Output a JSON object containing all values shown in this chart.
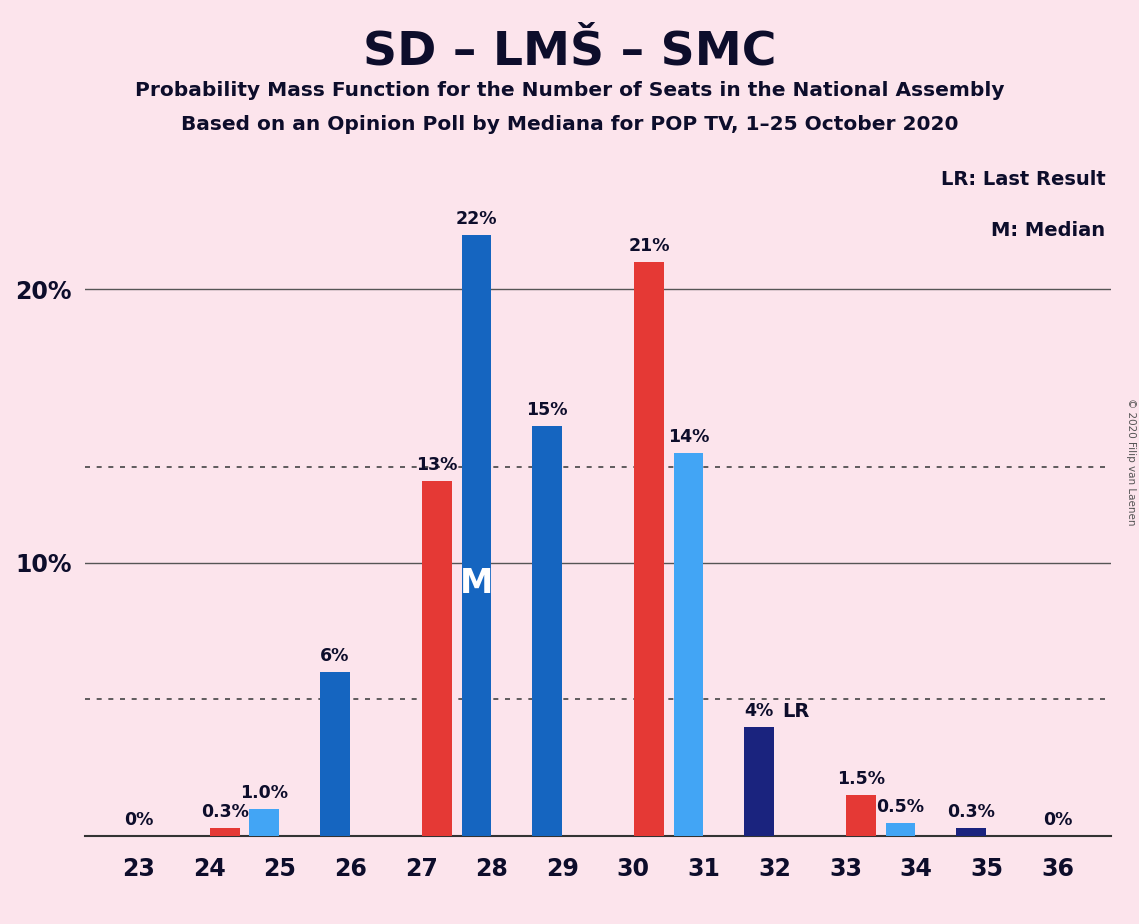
{
  "title": "SD – LMŠ – SMC",
  "subtitle1": "Probability Mass Function for the Number of Seats in the National Assembly",
  "subtitle2": "Based on an Opinion Poll by Mediana for POP TV, 1–25 October 2020",
  "copyright": "© 2020 Filip van Laenen",
  "legend_line1": "LR: Last Result",
  "legend_line2": "M: Median",
  "seats": [
    23,
    24,
    25,
    26,
    27,
    28,
    29,
    30,
    31,
    32,
    33,
    34,
    35,
    36
  ],
  "pmf_values": [
    0.0,
    0.0,
    1.0,
    6.0,
    0.0,
    22.0,
    15.0,
    0.0,
    14.0,
    4.0,
    0.0,
    0.5,
    0.3,
    0.0
  ],
  "lr_values": [
    0.0,
    0.3,
    0.0,
    0.0,
    13.0,
    0.0,
    0.0,
    21.0,
    0.0,
    0.0,
    1.5,
    0.0,
    0.0,
    0.0
  ],
  "pmf_labels": [
    "0%",
    "",
    "1.0%",
    "6%",
    "",
    "22%",
    "15%",
    "",
    "14%",
    "4%",
    "",
    "0.5%",
    "0.3%",
    "0%"
  ],
  "lr_labels": [
    "",
    "0.3%",
    "",
    "",
    "13%",
    "",
    "",
    "21%",
    "",
    "",
    "1.5%",
    "",
    "",
    ""
  ],
  "pmf_colors": [
    "#1565C0",
    "#1565C0",
    "#42A5F5",
    "#1565C0",
    "#1565C0",
    "#1565C0",
    "#1565C0",
    "#1565C0",
    "#42A5F5",
    "#1A237E",
    "#1565C0",
    "#42A5F5",
    "#1A237E",
    "#1565C0"
  ],
  "lr_color": "#e53935",
  "median_seat": 28,
  "lr_seat": 32,
  "background_color": "#fce4ec",
  "text_color": "#0d0d2b",
  "bar_width": 0.42,
  "ylim_max": 25,
  "dotted_lines": [
    5.0,
    13.5
  ],
  "solid_lines": [
    10.0,
    20.0
  ]
}
